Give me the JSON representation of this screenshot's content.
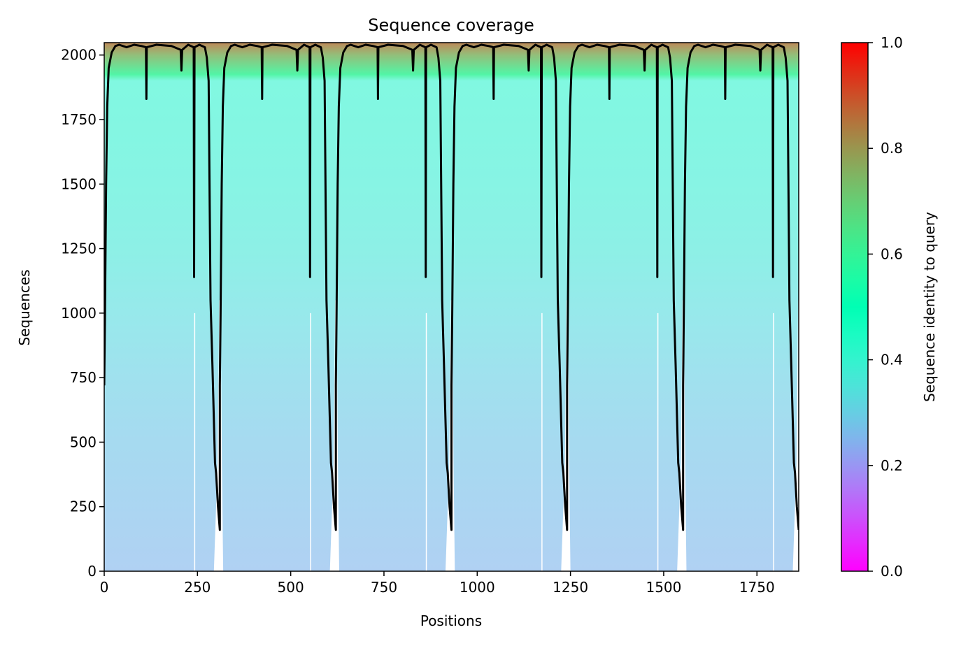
{
  "chart_data": {
    "type": "heatmap",
    "title": "Sequence coverage",
    "xlabel": "Positions",
    "ylabel": "Sequences",
    "xlim": [
      0,
      1862
    ],
    "ylim": [
      0,
      2048
    ],
    "xticks": [
      0,
      250,
      500,
      750,
      1000,
      1250,
      1500,
      1750
    ],
    "yticks": [
      0,
      250,
      500,
      750,
      1000,
      1250,
      1500,
      1750,
      2000
    ],
    "colorbar": {
      "label": "Sequence identity to query",
      "range": [
        0,
        1
      ],
      "ticks": [
        "0.0",
        "0.2",
        "0.4",
        "0.6",
        "0.8",
        "1.0"
      ],
      "colormap": "rainbow"
    },
    "identity_by_sequence": [
      {
        "seq": 0,
        "identity": 0.25
      },
      {
        "seq": 500,
        "identity": 0.28
      },
      {
        "seq": 750,
        "identity": 0.3
      },
      {
        "seq": 1000,
        "identity": 0.33
      },
      {
        "seq": 1250,
        "identity": 0.36
      },
      {
        "seq": 1500,
        "identity": 0.38
      },
      {
        "seq": 1900,
        "identity": 0.4
      },
      {
        "seq": 1925,
        "identity": 0.6
      },
      {
        "seq": 2000,
        "identity": 0.75
      },
      {
        "seq": 2048,
        "identity": 0.85
      }
    ],
    "repeat_segments": [
      {
        "start": 0,
        "end": 310
      },
      {
        "start": 310,
        "end": 621
      },
      {
        "start": 621,
        "end": 931
      },
      {
        "start": 931,
        "end": 1241
      },
      {
        "start": 1241,
        "end": 1552
      },
      {
        "start": 1552,
        "end": 1862
      }
    ],
    "coverage_line_profile": [
      [
        0,
        720
      ],
      [
        2,
        1000
      ],
      [
        5,
        1500
      ],
      [
        8,
        1800
      ],
      [
        12,
        1950
      ],
      [
        20,
        2010
      ],
      [
        30,
        2035
      ],
      [
        40,
        2040
      ],
      [
        60,
        2030
      ],
      [
        80,
        2040
      ],
      [
        100,
        2035
      ],
      [
        112,
        2030
      ],
      [
        113,
        1830
      ],
      [
        114,
        2030
      ],
      [
        140,
        2040
      ],
      [
        180,
        2035
      ],
      [
        205,
        2020
      ],
      [
        207,
        1940
      ],
      [
        209,
        2020
      ],
      [
        225,
        2040
      ],
      [
        240,
        2030
      ],
      [
        241,
        1140
      ],
      [
        242,
        2030
      ],
      [
        255,
        2040
      ],
      [
        270,
        2030
      ],
      [
        275,
        1990
      ],
      [
        280,
        1900
      ],
      [
        285,
        1050
      ],
      [
        290,
        800
      ],
      [
        297,
        420
      ],
      [
        300,
        380
      ],
      [
        305,
        250
      ],
      [
        310,
        160
      ]
    ]
  }
}
